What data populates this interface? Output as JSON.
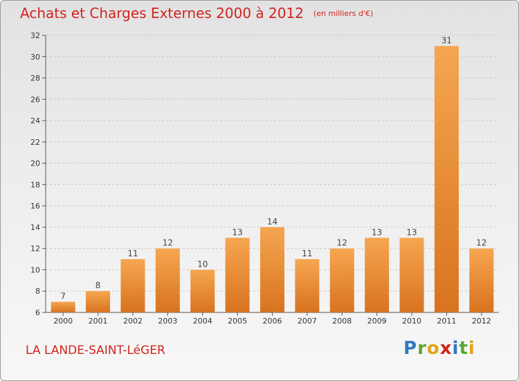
{
  "title": "Achats et Charges Externes 2000 à 2012",
  "unit": "(en milliers d'€)",
  "town": "LA LANDE-SAINT-LéGER",
  "brand": "Proxiti",
  "colors": {
    "bar_top": "#f6a650",
    "bar_bottom": "#d8731f",
    "title": "#d0241f"
  },
  "chart_data": {
    "type": "bar",
    "title": "Achats et Charges Externes 2000 à 2012",
    "subtitle": "(en milliers d'€)",
    "xlabel": "",
    "ylabel": "",
    "categories": [
      "2000",
      "2001",
      "2002",
      "2003",
      "2004",
      "2005",
      "2006",
      "2007",
      "2008",
      "2009",
      "2010",
      "2011",
      "2012"
    ],
    "values": [
      7,
      8,
      11,
      12,
      10,
      13,
      14,
      11,
      12,
      13,
      13,
      31,
      12
    ],
    "data_labels": [
      "7",
      "8",
      "11",
      "12",
      "10",
      "13",
      "14",
      "11",
      "12",
      "13",
      "13",
      "31",
      "12"
    ],
    "ylim": [
      6,
      32
    ],
    "yticks": [
      6,
      8,
      10,
      12,
      14,
      16,
      18,
      20,
      22,
      24,
      26,
      28,
      30,
      32
    ],
    "ytick_labels": [
      "6",
      "8",
      "10",
      "12",
      "14",
      "16",
      "18",
      "20",
      "22",
      "24",
      "26",
      "28",
      "30",
      "32"
    ],
    "grid": "horizontal dashed",
    "legend": "none"
  }
}
